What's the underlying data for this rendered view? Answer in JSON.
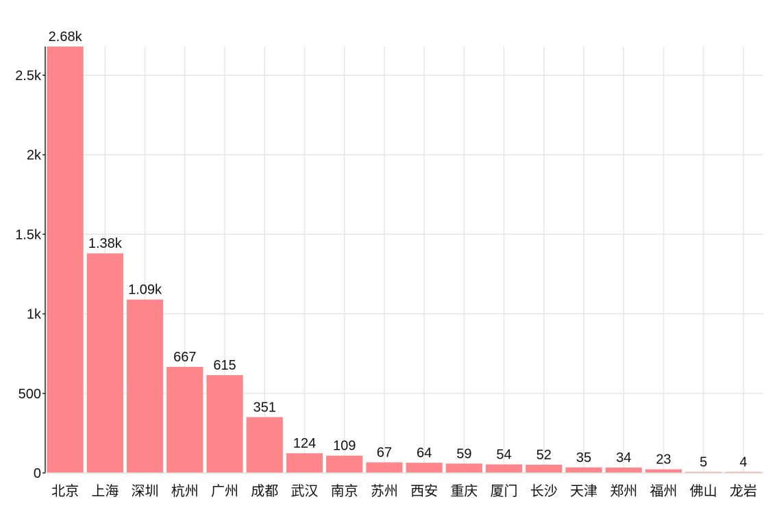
{
  "chart_data": {
    "type": "bar",
    "categories": [
      "北京",
      "上海",
      "深圳",
      "杭州",
      "广州",
      "成都",
      "武汉",
      "南京",
      "苏州",
      "西安",
      "重庆",
      "厦门",
      "长沙",
      "天津",
      "郑州",
      "福州",
      "佛山",
      "龙岩"
    ],
    "values": [
      2680,
      1380,
      1090,
      667,
      615,
      351,
      124,
      109,
      67,
      64,
      59,
      54,
      52,
      35,
      34,
      23,
      5,
      4
    ],
    "value_labels": [
      "2.68k",
      "1.38k",
      "1.09k",
      "667",
      "615",
      "351",
      "124",
      "109",
      "67",
      "64",
      "59",
      "54",
      "52",
      "35",
      "34",
      "23",
      "5",
      "4"
    ],
    "y_ticks": [
      0,
      500,
      1000,
      1500,
      2000,
      2500
    ],
    "y_tick_labels": [
      "0",
      "500",
      "1k",
      "1.5k",
      "2k",
      "2.5k"
    ],
    "ylim": [
      0,
      2680
    ],
    "grid": true,
    "bar_color": "#ff878b",
    "grid_color": "#e6e6e6",
    "axis_color": "#222222"
  }
}
